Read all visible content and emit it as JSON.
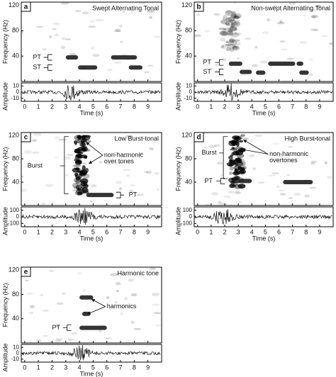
{
  "chart_data": [
    {
      "type": "spectrogram",
      "label": "a",
      "title": "Swept Alternating Tonal",
      "xlabel": "Time (s)",
      "ylabel": "Frequency (Hz)",
      "y2label": "Amplitude",
      "xlim": [
        -0.25,
        10
      ],
      "xticks": [
        0,
        1,
        2,
        3,
        4,
        5,
        6,
        7,
        8,
        9
      ],
      "ylim": [
        0,
        125
      ],
      "yticks": [
        40,
        80,
        120
      ],
      "y2lim": [
        -15,
        15
      ],
      "y2ticks": [
        -10,
        0,
        10
      ],
      "tones": [
        {
          "start": 3.0,
          "end": 3.9,
          "freq": 38
        },
        {
          "start": 6.3,
          "end": 8.2,
          "freq": 38
        },
        {
          "start": 3.9,
          "end": 5.3,
          "freq": 22
        },
        {
          "start": 7.6,
          "end": 8.6,
          "freq": 22
        }
      ],
      "bursts": [],
      "annotations": [
        "PT",
        "ST"
      ]
    },
    {
      "type": "spectrogram",
      "label": "b",
      "title": "Non-swept Alternating Tonal",
      "xlabel": "Time (s)",
      "ylabel": "Frequency (Hz)",
      "y2label": "Amplitude",
      "xlim": [
        -0.25,
        10
      ],
      "xticks": [
        0,
        1,
        2,
        3,
        4,
        5,
        6,
        7,
        8,
        9
      ],
      "ylim": [
        0,
        125
      ],
      "yticks": [
        40,
        80,
        120
      ],
      "y2lim": [
        -15,
        15
      ],
      "y2ticks": [
        -10,
        0,
        10
      ],
      "tones": [
        {
          "start": 2.3,
          "end": 3.3,
          "freq": 28
        },
        {
          "start": 5.2,
          "end": 7.2,
          "freq": 28
        },
        {
          "start": 7.3,
          "end": 7.8,
          "freq": 28
        },
        {
          "start": 3.1,
          "end": 4.0,
          "freq": 15
        },
        {
          "start": 4.3,
          "end": 5.0,
          "freq": 14
        },
        {
          "start": 7.5,
          "end": 8.2,
          "freq": 14
        }
      ],
      "bursts": [
        {
          "start": 1.8,
          "end": 3.0,
          "low": 50,
          "high": 110
        }
      ],
      "annotations": [
        "PT",
        "ST"
      ]
    },
    {
      "type": "spectrogram",
      "label": "c",
      "title": "Low Burst-tonal",
      "xlabel": "Time (s)",
      "ylabel": "Frequency (Hz)",
      "y2label": "Amplitude",
      "xlim": [
        -0.25,
        10
      ],
      "xticks": [
        0,
        1,
        2,
        3,
        4,
        5,
        6,
        7,
        8,
        9
      ],
      "ylim": [
        0,
        125
      ],
      "yticks": [
        40,
        80,
        120
      ],
      "y2lim": [
        -150,
        150
      ],
      "y2ticks": [
        -100,
        0,
        100
      ],
      "tones": [
        {
          "start": 4.5,
          "end": 6.5,
          "freq": 18
        }
      ],
      "bursts": [
        {
          "start": 3.7,
          "end": 4.6,
          "low": 20,
          "high": 120
        }
      ],
      "annotations": [
        "Burst",
        "non-harmonic",
        "over tones",
        "PT"
      ]
    },
    {
      "type": "spectrogram",
      "label": "d",
      "title": "High Burst-tonal",
      "xlabel": "Time (s)",
      "ylabel": "Frequency (Hz)",
      "y2label": "Amplitude",
      "xlim": [
        -0.25,
        10
      ],
      "xticks": [
        0,
        1,
        2,
        3,
        4,
        5,
        6,
        7,
        8,
        9
      ],
      "ylim": [
        0,
        125
      ],
      "yticks": [
        40,
        80,
        120
      ],
      "y2lim": [
        -150,
        150
      ],
      "y2ticks": [
        -100,
        0,
        100
      ],
      "tones": [
        {
          "start": 2.5,
          "end": 4.0,
          "freq": 42
        },
        {
          "start": 6.3,
          "end": 8.5,
          "freq": 40
        }
      ],
      "bursts": [
        {
          "start": 2.4,
          "end": 3.4,
          "low": 30,
          "high": 120
        }
      ],
      "annotations": [
        "Burst",
        "non-harmonic",
        "overtones",
        "PT"
      ]
    },
    {
      "type": "spectrogram",
      "label": "e",
      "title": "Harmonic tone",
      "xlabel": "Time (s)",
      "ylabel": "Frequency (Hz)",
      "y2label": "Amplitude",
      "xlim": [
        -0.25,
        10
      ],
      "xticks": [
        0,
        1,
        2,
        3,
        4,
        5,
        6,
        7,
        8,
        9
      ],
      "ylim": [
        0,
        125
      ],
      "yticks": [
        40,
        80,
        120
      ],
      "y2lim": [
        -15,
        15
      ],
      "y2ticks": [
        -10,
        0,
        10
      ],
      "tones": [
        {
          "start": 4.0,
          "end": 5.0,
          "freq": 75
        },
        {
          "start": 4.2,
          "end": 4.8,
          "freq": 48
        },
        {
          "start": 4.0,
          "end": 6.0,
          "freq": 25
        }
      ],
      "bursts": [],
      "annotations": [
        "harmonics",
        "PT"
      ]
    }
  ]
}
